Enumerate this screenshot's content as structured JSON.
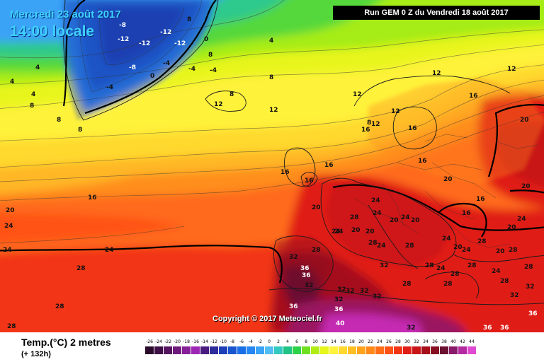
{
  "header": {
    "date": "Mercredi 23 août 2017",
    "time": "14:00 locale",
    "run": "Run GEM 0 Z du Vendredi 18 août 2017"
  },
  "footer": {
    "variable": "Temp.(°C) 2 metres",
    "hours": "(+ 132h)",
    "copyright": "Copyright © 2017 Meteociel.fr"
  },
  "scale": {
    "ticks": [
      "-26",
      "-24",
      "-22",
      "-20",
      "-18",
      "-16",
      "-14",
      "-12",
      "-10",
      "-8",
      "-6",
      "-4",
      "-2",
      "0",
      "2",
      "4",
      "6",
      "8",
      "10",
      "12",
      "14",
      "16",
      "18",
      "20",
      "22",
      "24",
      "26",
      "28",
      "30",
      "32",
      "34",
      "36",
      "38",
      "40",
      "42",
      "44"
    ],
    "colors": [
      "#2a0a2a",
      "#3e0f45",
      "#561460",
      "#6e1a7c",
      "#861f98",
      "#9d26b4",
      "#4a1c80",
      "#2e2b9a",
      "#1f3fb8",
      "#1a55d0",
      "#1a6ee6",
      "#2787f2",
      "#3aa3f6",
      "#52bdf2",
      "#33c9c0",
      "#1fc486",
      "#2ed24a",
      "#6ee020",
      "#b1ec14",
      "#e8f51a",
      "#fff23a",
      "#ffd92e",
      "#ffbf24",
      "#ffa31e",
      "#ff8a1a",
      "#ff6e16",
      "#ff5214",
      "#f23614",
      "#e01e16",
      "#c81418",
      "#a60f1a",
      "#861022",
      "#6a1030",
      "#8a1a6a",
      "#b42aa0",
      "#e04ad2"
    ]
  },
  "labels": [
    {
      "v": "-8"
    },
    {
      "v": "-12"
    },
    {
      "v": "-12"
    },
    {
      "v": "-12"
    },
    {
      "v": "-12"
    },
    {
      "v": "-8"
    },
    {
      "v": "-4"
    },
    {
      "v": "-4"
    },
    {
      "v": "-4"
    },
    {
      "v": "-4"
    },
    {
      "v": "0"
    },
    {
      "v": "0"
    },
    {
      "v": "4"
    },
    {
      "v": "4"
    },
    {
      "v": "4"
    },
    {
      "v": "4"
    },
    {
      "v": "8"
    },
    {
      "v": "8"
    },
    {
      "v": "8"
    },
    {
      "v": "8"
    },
    {
      "v": "8"
    },
    {
      "v": "8"
    },
    {
      "v": "8"
    },
    {
      "v": "8"
    },
    {
      "v": "12"
    },
    {
      "v": "12"
    },
    {
      "v": "12"
    },
    {
      "v": "12"
    },
    {
      "v": "12"
    },
    {
      "v": "12"
    },
    {
      "v": "12"
    },
    {
      "v": "16"
    },
    {
      "v": "16"
    },
    {
      "v": "16"
    },
    {
      "v": "16"
    },
    {
      "v": "16"
    },
    {
      "v": "16"
    },
    {
      "v": "16"
    },
    {
      "v": "16"
    },
    {
      "v": "16"
    },
    {
      "v": "16"
    },
    {
      "v": "20"
    },
    {
      "v": "20"
    },
    {
      "v": "20"
    },
    {
      "v": "20"
    },
    {
      "v": "20"
    },
    {
      "v": "20"
    },
    {
      "v": "20"
    },
    {
      "v": "20"
    },
    {
      "v": "20"
    },
    {
      "v": "20"
    },
    {
      "v": "20"
    },
    {
      "v": "20"
    },
    {
      "v": "24"
    },
    {
      "v": "24"
    },
    {
      "v": "24"
    },
    {
      "v": "24"
    },
    {
      "v": "24"
    },
    {
      "v": "24"
    },
    {
      "v": "24"
    },
    {
      "v": "24"
    },
    {
      "v": "24"
    },
    {
      "v": "24"
    },
    {
      "v": "24"
    },
    {
      "v": "24"
    },
    {
      "v": "24"
    },
    {
      "v": "24"
    },
    {
      "v": "28"
    },
    {
      "v": "28"
    },
    {
      "v": "28"
    },
    {
      "v": "28"
    },
    {
      "v": "28"
    },
    {
      "v": "28"
    },
    {
      "v": "28"
    },
    {
      "v": "28"
    },
    {
      "v": "28"
    },
    {
      "v": "28"
    },
    {
      "v": "28"
    },
    {
      "v": "28"
    },
    {
      "v": "28"
    },
    {
      "v": "28"
    },
    {
      "v": "28"
    },
    {
      "v": "28"
    },
    {
      "v": "32"
    },
    {
      "v": "32"
    },
    {
      "v": "32"
    },
    {
      "v": "32"
    },
    {
      "v": "32"
    },
    {
      "v": "32"
    },
    {
      "v": "32"
    },
    {
      "v": "32"
    },
    {
      "v": "32"
    },
    {
      "v": "32"
    },
    {
      "v": "32"
    },
    {
      "v": "36"
    },
    {
      "v": "36"
    },
    {
      "v": "36"
    },
    {
      "v": "36"
    },
    {
      "v": "36"
    },
    {
      "v": "36"
    },
    {
      "v": "36"
    },
    {
      "v": "40"
    }
  ]
}
